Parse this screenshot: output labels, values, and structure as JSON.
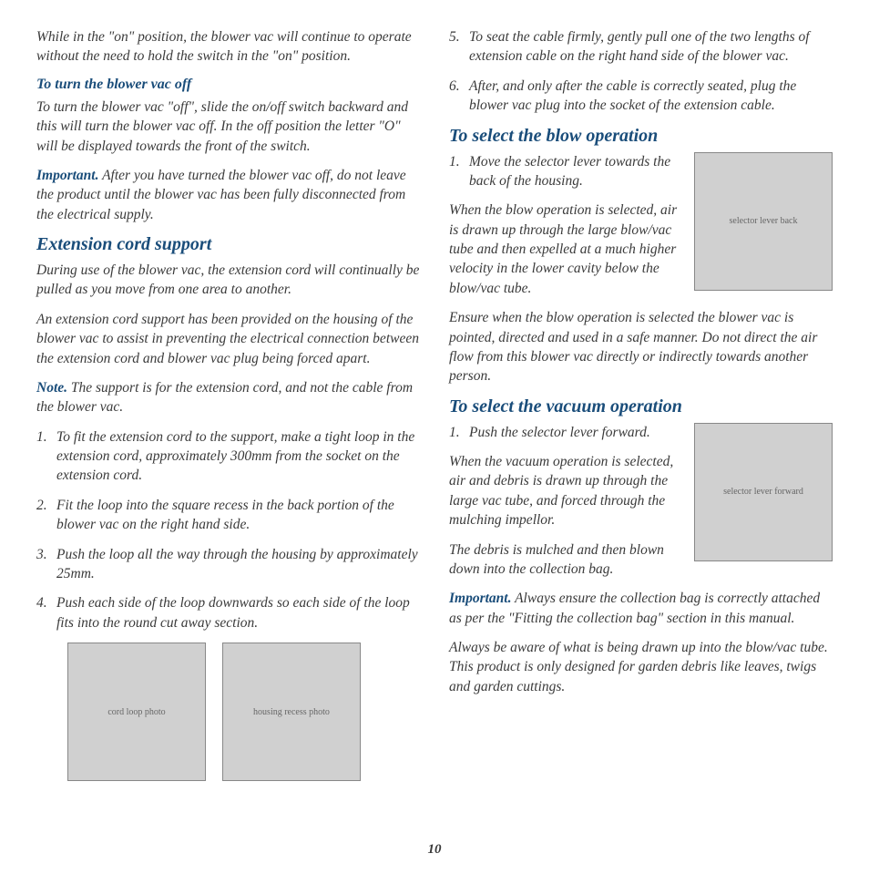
{
  "page_number": "10",
  "left": {
    "intro_para": "While in the \"on\" position, the blower vac will continue to operate without the need to hold the switch in the \"on\" position.",
    "turn_off_heading": "To turn the blower vac off",
    "turn_off_para": "To turn the blower vac \"off\", slide the on/off switch backward and this will turn the blower vac off. In the off position the letter \"O\" will be displayed towards the front of the switch.",
    "important_label": "Important.",
    "important_para": "After you have turned the blower vac off, do not leave the product until the blower vac has been fully disconnected from the electrical supply.",
    "ext_heading": "Extension cord support",
    "ext_para1": "During use of the blower vac, the extension cord will continually be pulled as you move from one area to another.",
    "ext_para2": "An extension cord support has been provided on the housing of the blower vac to assist in preventing the electrical connection between the extension cord and blower vac plug being forced apart.",
    "note_label": "Note.",
    "note_para": "The support is for the extension cord, and not the cable from the blower vac.",
    "steps": [
      "To fit the extension cord to the support, make a tight loop in the extension cord, approximately 300mm from the socket on the extension cord.",
      "Fit the loop into the square recess in the back portion of the blower vac on the right hand side.",
      "Push the loop all the way through the housing by approximately 25mm.",
      "Push each side of the loop downwards so each side of the loop fits into the round cut away section."
    ],
    "img1_alt": "cord loop photo",
    "img2_alt": "housing recess photo"
  },
  "right": {
    "steps_cont": [
      "To seat the cable firmly, gently pull one of the two lengths of extension cable on the right hand side of the blower vac.",
      "After, and only after the cable is correctly seated, plug the blower vac plug into the socket of the extension cable."
    ],
    "blow_heading": "To select the blow operation",
    "blow_step1": "Move the selector lever towards the back of the housing.",
    "blow_para1": "When the blow operation is selected, air is drawn up through the large blow/vac tube and then expelled at a much higher velocity in the lower cavity below the blow/vac tube.",
    "blow_para2": "Ensure when the blow operation is selected the blower vac is pointed, directed and used in a safe manner. Do not direct the air flow from this blower vac directly or indirectly towards another person.",
    "blow_img_alt": "selector lever back",
    "vac_heading": "To select the vacuum operation",
    "vac_step1": "Push the selector lever forward.",
    "vac_para1": "When the vacuum operation is selected, air and debris is drawn up through the large vac tube, and forced through the mulching impellor.",
    "vac_para2": "The debris is mulched and then blown down into the collection bag.",
    "vac_img_alt": "selector lever forward",
    "vac_important_label": "Important.",
    "vac_important_para": "Always ensure the collection bag is correctly attached as per the \"Fitting the collection bag\" section in this manual.",
    "vac_para3": "Always be aware of what is being drawn up into the blow/vac tube. This product is only designed for garden debris like leaves, twigs and garden cuttings."
  }
}
